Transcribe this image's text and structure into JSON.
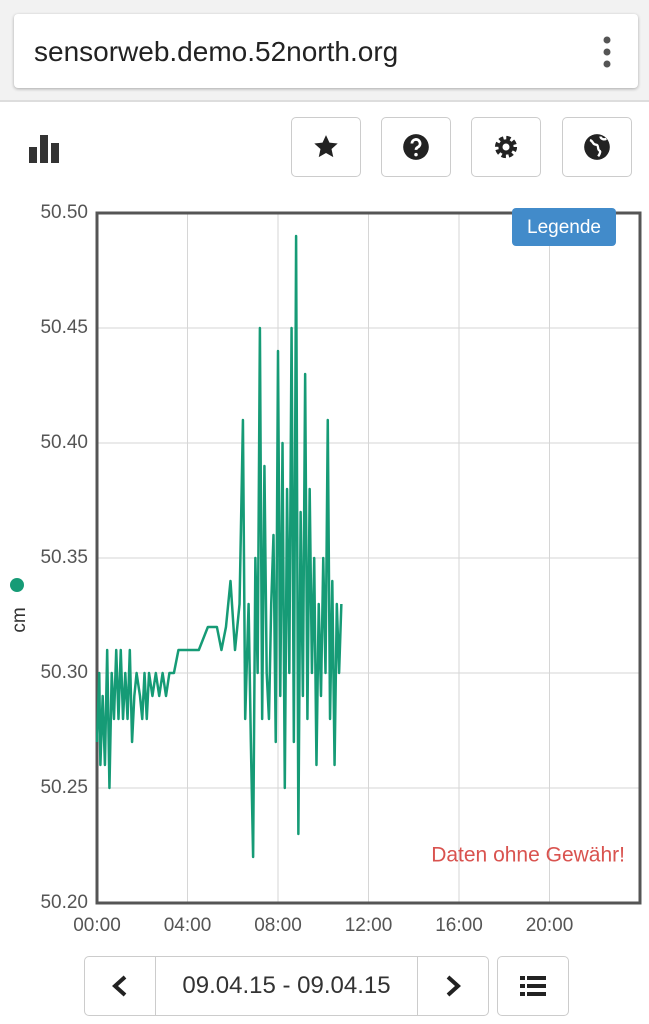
{
  "browser": {
    "url": "sensorweb.demo.52north.org"
  },
  "chart_data": {
    "type": "line",
    "y_label": "cm",
    "legend_button": "Legende",
    "annotation": "Daten ohne Gewähr!",
    "color": "#169b76",
    "x": [
      0.0,
      0.1,
      0.15,
      0.25,
      0.35,
      0.45,
      0.55,
      0.65,
      0.75,
      0.85,
      0.95,
      1.05,
      1.15,
      1.25,
      1.35,
      1.45,
      1.55,
      1.65,
      1.75,
      1.9,
      2.0,
      2.1,
      2.2,
      2.3,
      2.45,
      2.6,
      2.75,
      2.9,
      3.05,
      3.2,
      3.4,
      3.6,
      4.0,
      4.5,
      4.9,
      5.3,
      5.5,
      5.7,
      5.9,
      6.1,
      6.3,
      6.45,
      6.55,
      6.7,
      6.8,
      6.9,
      7.0,
      7.1,
      7.2,
      7.3,
      7.4,
      7.5,
      7.6,
      7.7,
      7.8,
      7.9,
      8.0,
      8.1,
      8.2,
      8.3,
      8.4,
      8.5,
      8.6,
      8.7,
      8.8,
      8.9,
      9.0,
      9.1,
      9.2,
      9.3,
      9.4,
      9.5,
      9.6,
      9.7,
      9.8,
      9.9,
      10.0,
      10.1,
      10.2,
      10.3,
      10.4,
      10.5,
      10.6,
      10.7,
      10.8
    ],
    "values": [
      50.27,
      50.3,
      50.26,
      50.29,
      50.26,
      50.31,
      50.25,
      50.3,
      50.28,
      50.31,
      50.28,
      50.31,
      50.28,
      50.3,
      50.28,
      50.31,
      50.27,
      50.29,
      50.3,
      50.29,
      50.28,
      50.3,
      50.28,
      50.3,
      50.29,
      50.3,
      50.29,
      50.3,
      50.29,
      50.3,
      50.3,
      50.31,
      50.31,
      50.31,
      50.32,
      50.32,
      50.31,
      50.32,
      50.34,
      50.31,
      50.33,
      50.41,
      50.28,
      50.33,
      50.27,
      50.22,
      50.35,
      50.3,
      50.45,
      50.28,
      50.39,
      50.3,
      50.28,
      50.33,
      50.36,
      50.27,
      50.44,
      50.29,
      50.4,
      50.25,
      50.38,
      50.3,
      50.45,
      50.27,
      50.49,
      50.23,
      50.37,
      50.29,
      50.43,
      50.28,
      50.38,
      50.3,
      50.35,
      50.26,
      50.33,
      50.29,
      50.35,
      50.3,
      50.41,
      50.28,
      50.34,
      50.26,
      50.33,
      50.3,
      50.33
    ],
    "xlim": [
      0,
      24
    ],
    "xticks": [
      {
        "value": 0,
        "label": "00:00"
      },
      {
        "value": 4,
        "label": "04:00"
      },
      {
        "value": 8,
        "label": "08:00"
      },
      {
        "value": 12,
        "label": "12:00"
      },
      {
        "value": 16,
        "label": "16:00"
      },
      {
        "value": 20,
        "label": "20:00"
      }
    ],
    "ylim": [
      50.2,
      50.5
    ],
    "yticks": [
      {
        "value": 50.2,
        "label": "50.20"
      },
      {
        "value": 50.25,
        "label": "50.25"
      },
      {
        "value": 50.3,
        "label": "50.30"
      },
      {
        "value": 50.35,
        "label": "50.35"
      },
      {
        "value": 50.4,
        "label": "50.40"
      },
      {
        "value": 50.45,
        "label": "50.45"
      },
      {
        "value": 50.5,
        "label": "50.50"
      }
    ],
    "grid": true
  },
  "footer": {
    "date_range": "09.04.15 - 09.04.15"
  }
}
